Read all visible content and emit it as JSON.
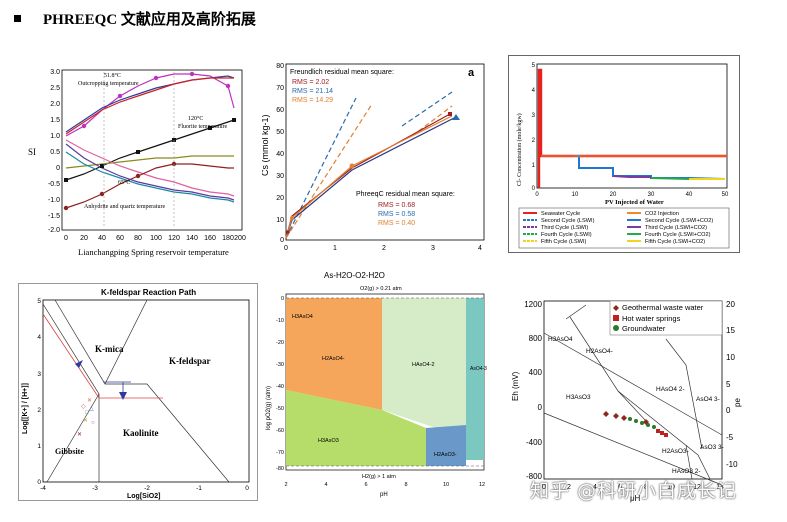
{
  "header": {
    "title": "PHREEQC 文献应用及高阶拓展"
  },
  "watermark": "知乎 @科研小白成长记",
  "panels": {
    "si": {
      "ylabel": "SI",
      "xlabel": "Lianchangping Spring reservoir temperature",
      "yticks": [
        "3.0",
        "2.5",
        "2.0",
        "1.5",
        "1.0",
        "0.5",
        "0",
        "-0.5",
        "-1.0",
        "-1.5",
        "-2.0"
      ],
      "xticks": [
        "0",
        "20",
        "40",
        "60",
        "80",
        "100",
        "120",
        "140",
        "160",
        "180",
        "200"
      ],
      "notes": [
        "51.8°C",
        "Outcropping temperature",
        "120°C",
        "Fluorite temperature",
        "65°C",
        "Anhydrite and quartz temperature"
      ]
    },
    "cs": {
      "panel_label": "a",
      "ylabel": "Cs (mmol kg-1)",
      "freundlich_title": "Freundlich residual mean square:",
      "freundlich": [
        "RMS = 2.02",
        "RMS = 21.14",
        "RMS = 14.29"
      ],
      "phreeqc_title": "PhreeqC residual mean square:",
      "phreeqc": [
        "RMS = 0.68",
        "RMS = 0.58",
        "RMS = 0.40"
      ],
      "yticks": [
        "80",
        "70",
        "60",
        "50",
        "40",
        "30",
        "20",
        "10",
        "0"
      ],
      "xticks": [
        "0",
        "1",
        "2",
        "3",
        "4"
      ]
    },
    "cl": {
      "ylabel": "Cl- Concentration (mole/kgw)",
      "xlabel": "PV Injected of Water",
      "yticks": [
        "5",
        "4",
        "3",
        "2",
        "1",
        "0"
      ],
      "xticks": [
        "0",
        "10",
        "20",
        "30",
        "40",
        "50"
      ],
      "legend": [
        "Seawater Cycle",
        "CO2 Injection",
        "Second Cycle (LSWI)",
        "Second Cycle (LSWI+CO2)",
        "Third Cycle (LSWI)",
        "Third Cycle (LSWI+CO2)",
        "Fourth Cycle (LSWI)",
        "Fourth Cycle (LSWI+CO2)",
        "Fifth Cycle (LSWI)",
        "Fifth Cycle (LSWI+CO2)"
      ],
      "colors": {
        "seawater": "#e8201f",
        "co2": "#f0872a",
        "second": "#1f77d4",
        "third": "#7a3aa0",
        "fourth": "#2aa84a",
        "fifth": "#f2d31e"
      }
    },
    "kf": {
      "title": "K-feldspar Reaction Path",
      "ylabel": "Log[[K+] / [H+]]",
      "xlabel": "Log[SiO2]",
      "fields": [
        "K-mica",
        "K-feldspar",
        "Kaolinite",
        "Gibbsite"
      ],
      "yticks": [
        "5",
        "4",
        "3",
        "2",
        "1",
        "0"
      ],
      "xticks": [
        "-4",
        "-3",
        "-2",
        "-1",
        "0"
      ]
    },
    "as": {
      "title": "As-H2O-O2-H2O",
      "top_note": "O2(g) > 0.21 atm",
      "bottom_note": "H2(g) > 1 atm",
      "ylabel": "log pO2(g) (atm)",
      "xlabel": "pH",
      "fields": [
        "H3AsO4",
        "H2AsO4-",
        "HAsO4-2",
        "AsO4-3",
        "H3AsO3",
        "H2AsO3-"
      ],
      "yticks": [
        "0",
        "-10",
        "-20",
        "-30",
        "-40",
        "-50",
        "-60",
        "-70",
        "-80"
      ],
      "xticks": [
        "2",
        "4",
        "6",
        "8",
        "10",
        "12"
      ]
    },
    "eh": {
      "legend": [
        "Geothermal waste water",
        "Hot water springs",
        "Groundwater"
      ],
      "ylabel": "Eh (mV)",
      "ylabel_right": "pe",
      "xlabel": "pH",
      "fields": [
        "H3AsO4",
        "H2AsO4-",
        "HAsO4 2-",
        "AsO4 3-",
        "H3AsO3",
        "H2AsO3-",
        "AsO3 3-",
        "HAsO3 2-"
      ],
      "yticks": [
        "1200",
        "800",
        "400",
        "0",
        "-400",
        "-800"
      ],
      "yticks_right": [
        "20",
        "15",
        "10",
        "5",
        "0",
        "-5",
        "-10"
      ],
      "xticks": [
        "0",
        "2",
        "4",
        "6",
        "8",
        "10",
        "12",
        "14"
      ]
    }
  }
}
